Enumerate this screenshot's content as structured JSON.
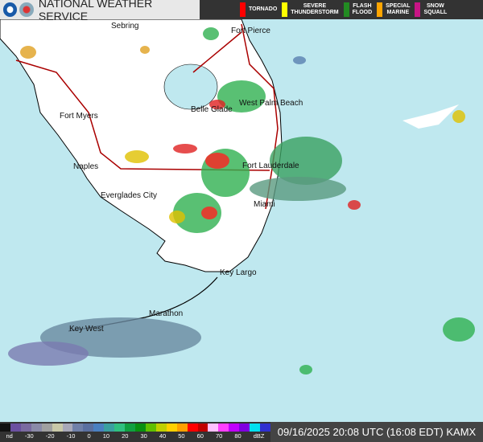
{
  "header": {
    "title": "NATIONAL WEATHER SERVICE",
    "warnings": [
      {
        "label": "TORNADO",
        "color": "#ff0000"
      },
      {
        "label": "SEVERE\nTHUNDERSTORM",
        "color": "#ffff00"
      },
      {
        "label": "FLASH\nFLOOD",
        "color": "#228b22"
      },
      {
        "label": "SPECIAL\nMARINE",
        "color": "#ffa500"
      },
      {
        "label": "SNOW\nSQUALL",
        "color": "#c71585"
      }
    ]
  },
  "cities": [
    {
      "name": "Sebring"
    },
    {
      "name": "Fort Pierce"
    },
    {
      "name": "Fort Myers"
    },
    {
      "name": "Belle Glade"
    },
    {
      "name": "West Palm Beach"
    },
    {
      "name": "Naples"
    },
    {
      "name": "Fort Lauderdale"
    },
    {
      "name": "Everglades City"
    },
    {
      "name": "Miami"
    },
    {
      "name": "Key Largo"
    },
    {
      "name": "Marathon"
    },
    {
      "name": "Key West"
    }
  ],
  "legend": {
    "ticks": [
      "nd",
      "-30",
      "-20",
      "-10",
      "0",
      "10",
      "20",
      "30",
      "40",
      "50",
      "60",
      "70",
      "80",
      "dBZ"
    ],
    "colors": [
      "#111",
      "#6b4fa0",
      "#7a6aa0",
      "#8a8aa8",
      "#a0a0a0",
      "#c8c8a8",
      "#a8a8b8",
      "#7080a8",
      "#5a70a0",
      "#4a80c0",
      "#3aa0a0",
      "#30c080",
      "#10a040",
      "#089010",
      "#60c000",
      "#c0d000",
      "#ffd000",
      "#ffa000",
      "#ff0000",
      "#c00000",
      "#ffc0ff",
      "#ff40ff",
      "#c000ff",
      "#8000e0",
      "#00e0f0",
      "#3030d0"
    ]
  },
  "timestamp": "09/16/2025 20:08 UTC (16:08 EDT) KAMX"
}
